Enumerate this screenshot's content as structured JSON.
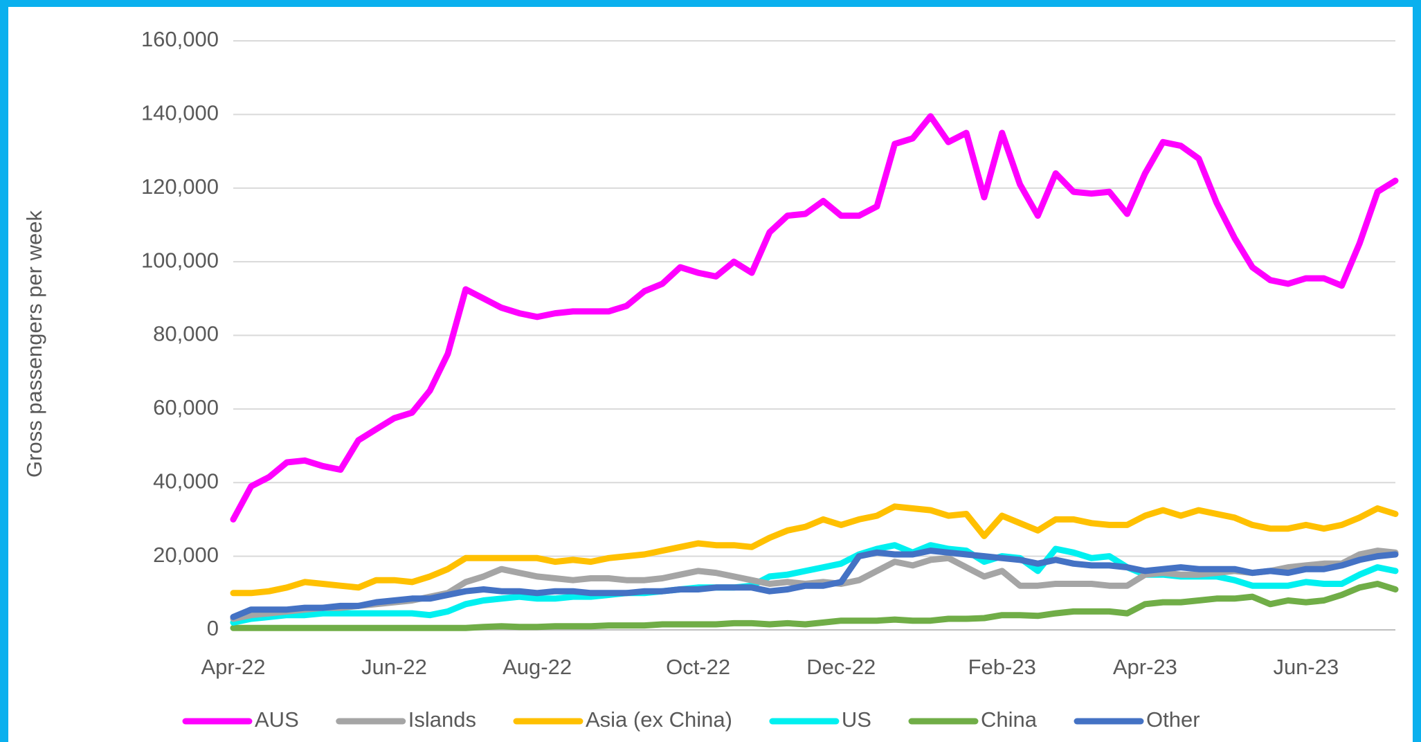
{
  "chart_data": {
    "type": "line",
    "y_label": "Gross passengers per week",
    "categories": [
      "Apr-22",
      null,
      null,
      null,
      null,
      null,
      null,
      null,
      null,
      "Jun-22",
      null,
      null,
      null,
      null,
      null,
      null,
      null,
      "Aug-22",
      null,
      null,
      null,
      null,
      null,
      null,
      null,
      null,
      "Oct-22",
      null,
      null,
      null,
      null,
      null,
      null,
      null,
      "Dec-22",
      null,
      null,
      null,
      null,
      null,
      null,
      null,
      null,
      "Feb-23",
      null,
      null,
      null,
      null,
      null,
      null,
      null,
      "Apr-23",
      null,
      null,
      null,
      null,
      null,
      null,
      null,
      null,
      "Jun-23",
      null,
      null,
      null,
      null,
      null
    ],
    "ylim": [
      0,
      160000
    ],
    "yticks": [
      {
        "value": 0,
        "label": "0"
      },
      {
        "value": 20000,
        "label": "20,000"
      },
      {
        "value": 40000,
        "label": "40,000"
      },
      {
        "value": 60000,
        "label": "60,000"
      },
      {
        "value": 80000,
        "label": "80,000"
      },
      {
        "value": 100000,
        "label": "100,000"
      },
      {
        "value": 120000,
        "label": "120,000"
      },
      {
        "value": 140000,
        "label": "140,000"
      },
      {
        "value": 160000,
        "label": "160,000"
      }
    ],
    "grid": true,
    "legend": "bottom",
    "series": [
      {
        "name": "AUS",
        "color": "#ff00ff",
        "values": [
          30000,
          39000,
          41500,
          45500,
          46000,
          44500,
          43500,
          51500,
          54500,
          57500,
          59000,
          65000,
          75000,
          92500,
          90000,
          87500,
          86000,
          85000,
          86000,
          86500,
          86500,
          86500,
          88000,
          92000,
          94000,
          98500,
          97000,
          96000,
          100000,
          97000,
          108000,
          112500,
          113000,
          116500,
          112500,
          112500,
          115000,
          132000,
          133500,
          139500,
          132500,
          135000,
          117500,
          135000,
          121000,
          112500,
          124000,
          119000,
          118500,
          119000,
          113000,
          124000,
          132500,
          131500,
          128000,
          116000,
          106500,
          98500,
          95000,
          94000,
          95500,
          95500,
          93500,
          105000,
          119000,
          122000
        ]
      },
      {
        "name": "Islands",
        "color": "#a5a5a5",
        "values": [
          3000,
          4000,
          4500,
          5000,
          5500,
          6000,
          6000,
          6500,
          7000,
          7500,
          8000,
          9000,
          10000,
          13000,
          14500,
          16500,
          15500,
          14500,
          14000,
          13500,
          14000,
          14000,
          13500,
          13500,
          14000,
          15000,
          16000,
          15500,
          14500,
          13500,
          12500,
          13000,
          12500,
          13000,
          12500,
          13500,
          16000,
          18500,
          17500,
          19000,
          19500,
          17000,
          14500,
          16000,
          12000,
          12000,
          12500,
          12500,
          12500,
          12000,
          12000,
          15000,
          15500,
          15000,
          15000,
          15500,
          16000,
          15500,
          16000,
          17000,
          17500,
          18000,
          18000,
          20500,
          21500,
          21000
        ]
      },
      {
        "name": "Asia (ex China)",
        "color": "#ffc000",
        "values": [
          10000,
          10000,
          10500,
          11500,
          13000,
          12500,
          12000,
          11500,
          13500,
          13500,
          13000,
          14500,
          16500,
          19500,
          19500,
          19500,
          19500,
          19500,
          18500,
          19000,
          18500,
          19500,
          20000,
          20500,
          21500,
          22500,
          23500,
          23000,
          23000,
          22500,
          25000,
          27000,
          28000,
          30000,
          28500,
          30000,
          31000,
          33500,
          33000,
          32500,
          31000,
          31500,
          25500,
          31000,
          29000,
          27000,
          30000,
          30000,
          29000,
          28500,
          28500,
          31000,
          32500,
          31000,
          32500,
          31500,
          30500,
          28500,
          27500,
          27500,
          28500,
          27500,
          28500,
          30500,
          33000,
          31500
        ]
      },
      {
        "name": "US",
        "color": "#00f0f0",
        "values": [
          2000,
          3000,
          3500,
          4000,
          4000,
          4500,
          4500,
          4500,
          4500,
          4500,
          4500,
          4000,
          5000,
          7000,
          8000,
          8500,
          9000,
          8500,
          8500,
          9000,
          9000,
          9500,
          10000,
          10000,
          10500,
          11000,
          11500,
          11500,
          11500,
          12000,
          14500,
          15000,
          16000,
          17000,
          18000,
          20500,
          22000,
          23000,
          21000,
          23000,
          22000,
          21500,
          18500,
          20000,
          19500,
          16000,
          22000,
          21000,
          19500,
          20000,
          17000,
          15000,
          15000,
          14500,
          14500,
          14500,
          13500,
          12000,
          12000,
          12000,
          13000,
          12500,
          12500,
          15000,
          17000,
          16000
        ]
      },
      {
        "name": "China",
        "color": "#70ad47",
        "values": [
          500,
          500,
          500,
          500,
          500,
          500,
          500,
          500,
          500,
          500,
          500,
          500,
          500,
          500,
          800,
          1000,
          800,
          800,
          1000,
          1000,
          1000,
          1200,
          1200,
          1200,
          1500,
          1500,
          1500,
          1500,
          1800,
          1800,
          1500,
          1800,
          1500,
          2000,
          2500,
          2500,
          2500,
          2800,
          2500,
          2500,
          3000,
          3000,
          3200,
          4000,
          4000,
          3800,
          4500,
          5000,
          5000,
          5000,
          4500,
          7000,
          7500,
          7500,
          8000,
          8500,
          8500,
          9000,
          7000,
          8000,
          7500,
          8000,
          9500,
          11500,
          12500,
          11000
        ]
      },
      {
        "name": "Other",
        "color": "#4472c4",
        "values": [
          3500,
          5500,
          5500,
          5500,
          6000,
          6000,
          6500,
          6500,
          7500,
          8000,
          8500,
          8500,
          9500,
          10500,
          11000,
          10500,
          10500,
          10000,
          10500,
          10500,
          10000,
          10000,
          10000,
          10500,
          10500,
          11000,
          11000,
          11500,
          11500,
          11500,
          10500,
          11000,
          12000,
          12000,
          13000,
          20000,
          21000,
          20500,
          20500,
          21500,
          21000,
          20500,
          20000,
          19500,
          19000,
          18000,
          19000,
          18000,
          17500,
          17500,
          17000,
          16000,
          16500,
          17000,
          16500,
          16500,
          16500,
          15500,
          16000,
          15500,
          16500,
          16500,
          17500,
          19000,
          20000,
          20500
        ]
      }
    ]
  }
}
